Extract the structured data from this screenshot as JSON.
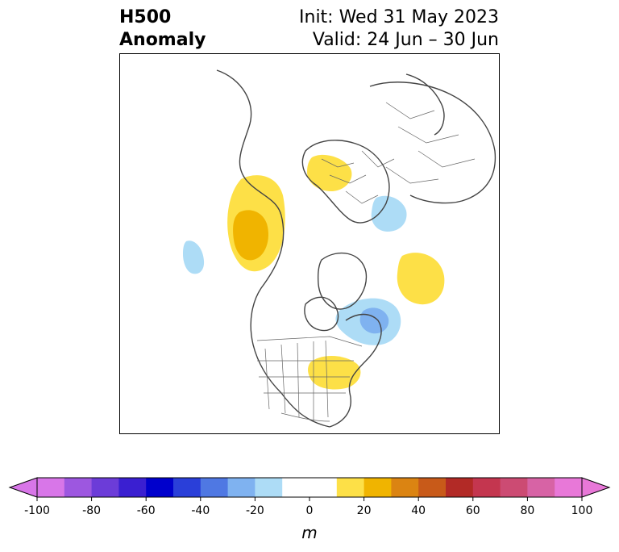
{
  "header": {
    "variable": "H500",
    "kind": "Anomaly",
    "init": "Init: Wed 31 May 2023",
    "valid": "Valid: 24 Jun – 30 Jun"
  },
  "map": {
    "projection": "north polar stereographic",
    "region": "Northern Hemisphere (North America, Arctic, Europe, Asia)",
    "anomaly_areas": [
      {
        "region": "Western Canada / Alaska border",
        "sign": "positive",
        "peak_m": 30
      },
      {
        "region": "Scandinavia",
        "sign": "positive",
        "peak_m": 20
      },
      {
        "region": "Western Russia",
        "sign": "negative",
        "peak_m": -20
      },
      {
        "region": "North Pacific",
        "sign": "negative",
        "peak_m": -20
      },
      {
        "region": "Greenland Sea",
        "sign": "positive",
        "peak_m": 20
      },
      {
        "region": "Eastern Canada / Labrador",
        "sign": "negative",
        "peak_m": -30
      },
      {
        "region": "Southeastern United States",
        "sign": "positive",
        "peak_m": 20
      }
    ]
  },
  "colorbar": {
    "unit": "m",
    "min": -100,
    "max": 100,
    "step": 10,
    "ticks": [
      "-100",
      "-80",
      "-60",
      "-40",
      "-20",
      "0",
      "20",
      "40",
      "60",
      "80",
      "100"
    ],
    "colors": [
      "#d876e8",
      "#9d57e0",
      "#6c3cd8",
      "#3a1fd1",
      "#0000cc",
      "#2a3fd9",
      "#4f78e3",
      "#7fb2f0",
      "#addcf6",
      "#ffffff",
      "#ffffff",
      "#fde047",
      "#f0b400",
      "#db8412",
      "#c85a19",
      "#b22a26",
      "#c4364f",
      "#cc4b73",
      "#d763a5",
      "#e878d8"
    ],
    "extend": "both"
  }
}
